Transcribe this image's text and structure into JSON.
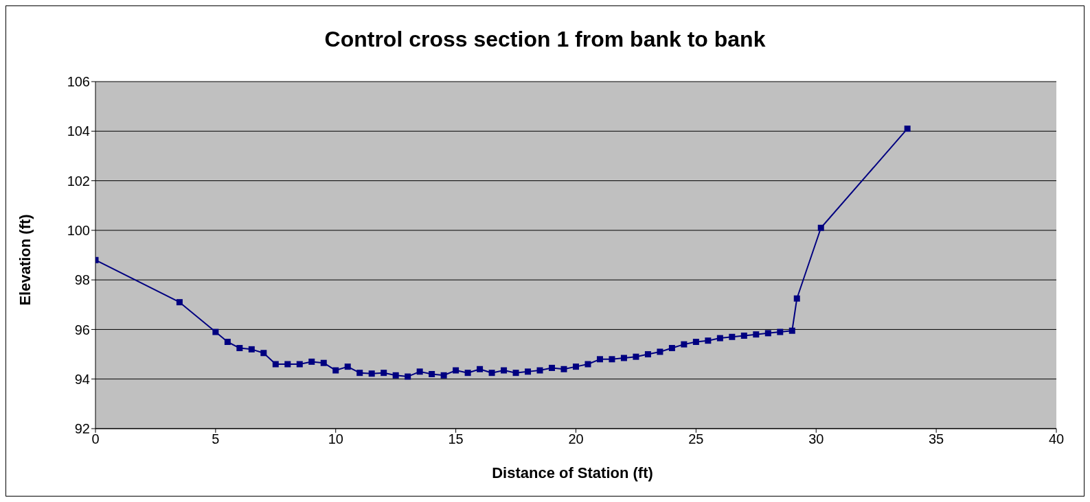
{
  "chart_data": {
    "type": "line",
    "title": "Control cross section 1 from bank to bank",
    "xlabel": "Distance of Station (ft)",
    "ylabel": "Elevation (ft)",
    "x": [
      0,
      3.5,
      5,
      5.5,
      6,
      6.5,
      7,
      7.5,
      8,
      8.5,
      9,
      9.5,
      10,
      10.5,
      11,
      11.5,
      12,
      12.5,
      13,
      13.5,
      14,
      14.5,
      15,
      15.5,
      16,
      16.5,
      17,
      17.5,
      18,
      18.5,
      19,
      19.5,
      20,
      20.5,
      21,
      21.5,
      22,
      22.5,
      23,
      23.5,
      24,
      24.5,
      25,
      25.5,
      26,
      26.5,
      27,
      27.5,
      28,
      28.5,
      29,
      29.2,
      30.2,
      33.8
    ],
    "series": [
      {
        "color": "#000080",
        "values": [
          98.8,
          97.1,
          95.9,
          95.5,
          95.25,
          95.2,
          95.05,
          94.6,
          94.6,
          94.6,
          94.7,
          94.65,
          94.35,
          94.5,
          94.25,
          94.22,
          94.25,
          94.15,
          94.1,
          94.3,
          94.2,
          94.15,
          94.35,
          94.25,
          94.4,
          94.25,
          94.35,
          94.25,
          94.3,
          94.35,
          94.45,
          94.4,
          94.5,
          94.6,
          94.8,
          94.8,
          94.85,
          94.9,
          95.0,
          95.1,
          95.25,
          95.4,
          95.5,
          95.55,
          95.65,
          95.7,
          95.75,
          95.8,
          95.85,
          95.9,
          95.95,
          97.25,
          100.1,
          104.1
        ]
      }
    ],
    "xlim": [
      0,
      40
    ],
    "xticks": [
      0,
      5,
      10,
      15,
      20,
      25,
      30,
      35,
      40
    ],
    "ylim": [
      92,
      106
    ],
    "yticks": [
      92,
      94,
      96,
      98,
      100,
      102,
      104,
      106
    ],
    "grid": "y",
    "legend": false,
    "marker": "square",
    "line_style": "solid"
  }
}
